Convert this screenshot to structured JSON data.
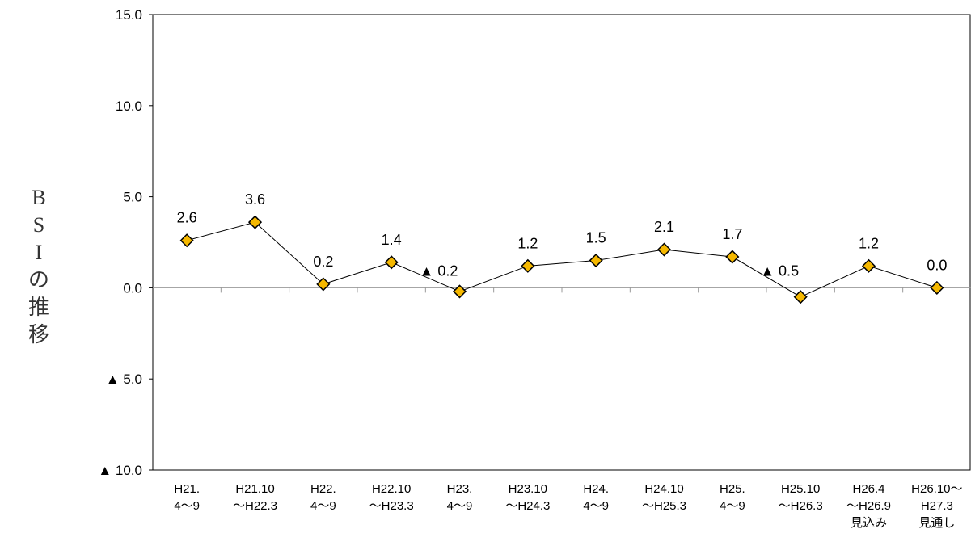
{
  "chart_data": {
    "type": "line",
    "title": "",
    "ylabel": "BSIの推移",
    "xlabel": "",
    "ylim": [
      -10,
      15
    ],
    "y_ticks": [
      {
        "value": 15,
        "label": "15.0"
      },
      {
        "value": 10,
        "label": "10.0"
      },
      {
        "value": 5,
        "label": "5.0"
      },
      {
        "value": 0,
        "label": "0.0"
      },
      {
        "value": -5,
        "label": "▲ 5.0"
      },
      {
        "value": -10,
        "label": "▲ 10.0"
      }
    ],
    "categories": [
      [
        "H21.",
        "4〜9"
      ],
      [
        "H21.10",
        "〜H22.3"
      ],
      [
        "H22.",
        "4〜9"
      ],
      [
        "H22.10",
        "〜H23.3"
      ],
      [
        "H23.",
        "4〜9"
      ],
      [
        "H23.10",
        "〜H24.3"
      ],
      [
        "H24.",
        "4〜9"
      ],
      [
        "H24.10",
        "〜H25.3"
      ],
      [
        "H25.",
        "4〜9"
      ],
      [
        "H25.10",
        "〜H26.3"
      ],
      [
        "H26.4",
        "〜H26.9",
        "見込み"
      ],
      [
        "H26.10〜",
        "H27.3",
        "見通し"
      ]
    ],
    "values": [
      2.6,
      3.6,
      0.2,
      1.4,
      -0.2,
      1.2,
      1.5,
      2.1,
      1.7,
      -0.5,
      1.2,
      0.0
    ],
    "data_labels": [
      "2.6",
      "3.6",
      "0.2",
      "1.4",
      "▲ 0.2",
      "1.2",
      "1.5",
      "2.1",
      "1.7",
      "▲ 0.5",
      "1.2",
      "0.0"
    ],
    "grid": false,
    "marker_color": "#f5b800",
    "marker_edge_color": "#000000",
    "line_color": "#000000",
    "zero_line_color": "#999999"
  }
}
